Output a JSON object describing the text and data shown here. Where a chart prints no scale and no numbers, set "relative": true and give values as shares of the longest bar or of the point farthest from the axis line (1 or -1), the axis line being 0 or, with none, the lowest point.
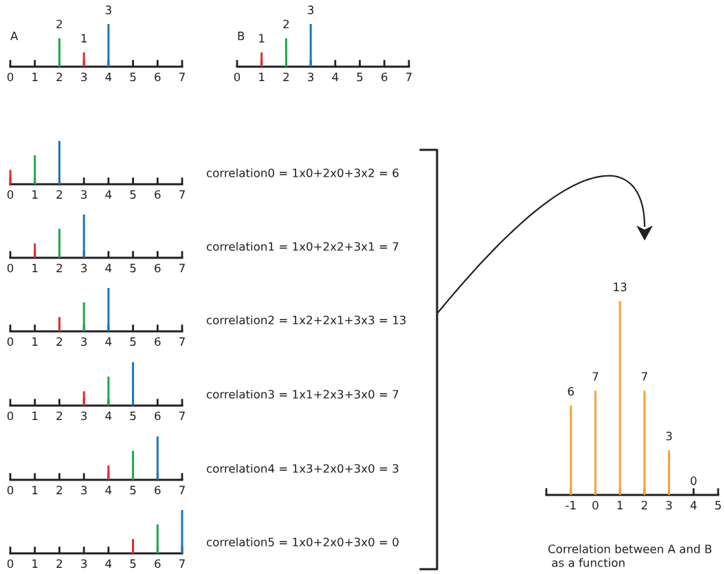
{
  "chart_data": [
    {
      "type": "bar",
      "title": "A",
      "x": [
        2,
        3,
        4
      ],
      "values": [
        2,
        1,
        3
      ],
      "colors": [
        "#1ca84a",
        "#e8262a",
        "#1a75bc"
      ],
      "data_labels": true,
      "xlim": [
        0,
        7
      ],
      "xticks": [
        0,
        1,
        2,
        3,
        4,
        5,
        6,
        7
      ],
      "tick_labels": "x"
    },
    {
      "type": "bar",
      "title": "B",
      "x": [
        1,
        2,
        3
      ],
      "values": [
        1,
        2,
        3
      ],
      "colors": [
        "#e8262a",
        "#1ca84a",
        "#1a75bc"
      ],
      "data_labels": true,
      "xlim": [
        0,
        7
      ],
      "xticks": [
        0,
        1,
        2,
        3,
        4,
        5,
        6,
        7
      ],
      "tick_labels": "x"
    },
    {
      "type": "bar",
      "x": [
        0,
        1,
        2
      ],
      "values": [
        0.33,
        0.67,
        1
      ],
      "colors": [
        "#e8262a",
        "#1ca84a",
        "#1a75bc"
      ],
      "relative": true,
      "xlim": [
        0,
        7
      ],
      "xticks": [
        0,
        1,
        2,
        3,
        4,
        5,
        6,
        7
      ],
      "tick_labels": "x",
      "annotations": [
        "correlation0 = 1x0+2x0+3x2 = 6"
      ]
    },
    {
      "type": "bar",
      "x": [
        1,
        2,
        3
      ],
      "values": [
        0.33,
        0.67,
        1
      ],
      "colors": [
        "#e8262a",
        "#1ca84a",
        "#1a75bc"
      ],
      "relative": true,
      "xlim": [
        0,
        7
      ],
      "xticks": [
        0,
        1,
        2,
        3,
        4,
        5,
        6,
        7
      ],
      "tick_labels": "x",
      "annotations": [
        "correlation1 = 1x0+2x2+3x1 = 7"
      ]
    },
    {
      "type": "bar",
      "x": [
        2,
        3,
        4
      ],
      "values": [
        0.33,
        0.67,
        1
      ],
      "colors": [
        "#e8262a",
        "#1ca84a",
        "#1a75bc"
      ],
      "relative": true,
      "xlim": [
        0,
        7
      ],
      "xticks": [
        0,
        1,
        2,
        3,
        4,
        5,
        6,
        7
      ],
      "tick_labels": "x",
      "annotations": [
        "correlation2 = 1x2+2x1+3x3 = 13"
      ]
    },
    {
      "type": "bar",
      "x": [
        3,
        4,
        5
      ],
      "values": [
        0.33,
        0.67,
        1
      ],
      "colors": [
        "#e8262a",
        "#1ca84a",
        "#1a75bc"
      ],
      "relative": true,
      "xlim": [
        0,
        7
      ],
      "xticks": [
        0,
        1,
        2,
        3,
        4,
        5,
        6,
        7
      ],
      "tick_labels": "x",
      "annotations": [
        "correlation3 = 1x1+2x3+3x0 = 7"
      ]
    },
    {
      "type": "bar",
      "x": [
        4,
        5,
        6
      ],
      "values": [
        0.33,
        0.67,
        1
      ],
      "colors": [
        "#e8262a",
        "#1ca84a",
        "#1a75bc"
      ],
      "relative": true,
      "xlim": [
        0,
        7
      ],
      "xticks": [
        0,
        1,
        2,
        3,
        4,
        5,
        6,
        7
      ],
      "tick_labels": "x",
      "annotations": [
        "correlation4 = 1x3+2x0+3x0 = 3"
      ]
    },
    {
      "type": "bar",
      "x": [
        5,
        6,
        7
      ],
      "values": [
        0.33,
        0.67,
        1
      ],
      "colors": [
        "#e8262a",
        "#1ca84a",
        "#1a75bc"
      ],
      "relative": true,
      "xlim": [
        0,
        7
      ],
      "xticks": [
        0,
        1,
        2,
        3,
        4,
        5,
        6,
        7
      ],
      "tick_labels": "x",
      "annotations": [
        "correlation5 = 1x0+2x0+3x0 = 0"
      ]
    },
    {
      "type": "bar",
      "x": [
        -1,
        0,
        1,
        2,
        3,
        4
      ],
      "values": [
        6,
        7,
        13,
        7,
        3,
        0
      ],
      "colors": [
        "#f7a233",
        "#f7a233",
        "#f7a233",
        "#f7a233",
        "#f7a233",
        "#f7a233"
      ],
      "data_labels": true,
      "xlim": [
        -2,
        5
      ],
      "xticks": [
        {
          "value": -2,
          "label": null
        },
        -1,
        0,
        1,
        2,
        3,
        4,
        5
      ],
      "tick_labels": "x",
      "annotations": [
        "Correlation between A and B",
        " as a function"
      ]
    }
  ]
}
